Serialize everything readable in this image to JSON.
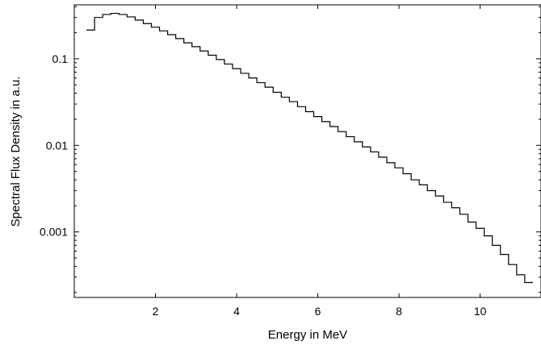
{
  "chart_data": {
    "type": "line",
    "step": true,
    "xlabel": "Energy in MeV",
    "ylabel": "Spectral Flux Density in a.u.",
    "xlim": [
      0.0,
      11.5
    ],
    "ylim": [
      0.000175,
      0.42
    ],
    "yscale": "log",
    "grid": false,
    "xticks": [
      2,
      4,
      6,
      8,
      10
    ],
    "xtick_labels": [
      "2",
      "4",
      "6",
      "8",
      "10"
    ],
    "yticks": [
      0.001,
      0.01,
      0.1
    ],
    "ytick_labels": [
      "0.001",
      "0.01",
      "0.1"
    ],
    "bin_edges": [
      0.3,
      0.5,
      0.7,
      0.9,
      1.1,
      1.3,
      1.5,
      1.7,
      1.9,
      2.1,
      2.3,
      2.5,
      2.7,
      2.9,
      3.1,
      3.3,
      3.5,
      3.7,
      3.9,
      4.1,
      4.3,
      4.5,
      4.7,
      4.9,
      5.1,
      5.3,
      5.5,
      5.7,
      5.9,
      6.1,
      6.3,
      6.5,
      6.7,
      6.9,
      7.1,
      7.3,
      7.5,
      7.7,
      7.9,
      8.1,
      8.3,
      8.5,
      8.7,
      8.9,
      9.1,
      9.3,
      9.5,
      9.7,
      9.9,
      10.1,
      10.3,
      10.5,
      10.7,
      10.9,
      11.1,
      11.3
    ],
    "series": [
      {
        "values": [
          0.215,
          0.3,
          0.325,
          0.335,
          0.325,
          0.305,
          0.28,
          0.255,
          0.232,
          0.21,
          0.19,
          0.171,
          0.153,
          0.138,
          0.123,
          0.11,
          0.098,
          0.087,
          0.077,
          0.068,
          0.06,
          0.053,
          0.047,
          0.041,
          0.036,
          0.032,
          0.028,
          0.0245,
          0.0215,
          0.0188,
          0.0165,
          0.0144,
          0.0126,
          0.011,
          0.0096,
          0.0084,
          0.0073,
          0.0063,
          0.0055,
          0.0047,
          0.004,
          0.0035,
          0.003,
          0.0026,
          0.0022,
          0.0019,
          0.0016,
          0.0013,
          0.0011,
          0.0009,
          0.0007,
          0.00055,
          0.00042,
          0.00032,
          0.00026
        ]
      }
    ]
  }
}
